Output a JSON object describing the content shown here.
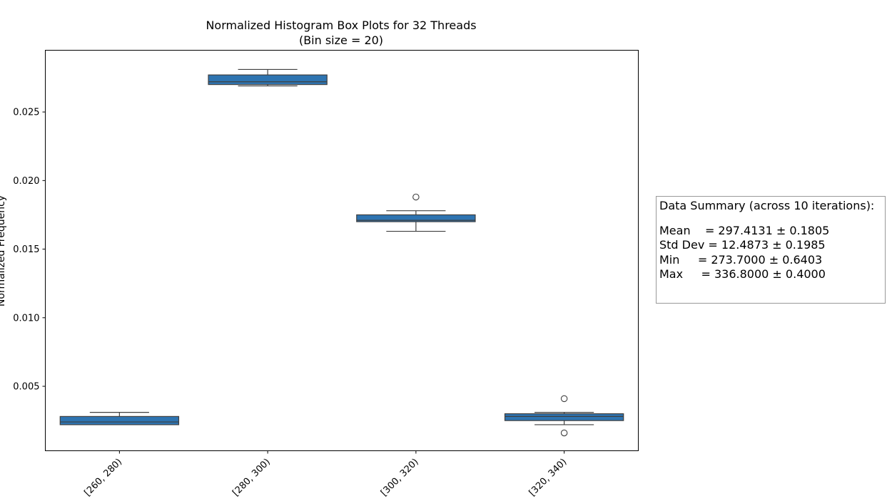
{
  "chart_data": {
    "type": "box",
    "title_line1": "Normalized Histogram Box Plots for 32 Threads",
    "title_line2": "(Bin size = 20)",
    "ylabel": "Normalized Frequency",
    "xlabel": "",
    "categories": [
      "[260, 280)",
      "[280, 300)",
      "[300, 320)",
      "[320, 340)"
    ],
    "ylim": [
      0.0003,
      0.0295
    ],
    "yticks": [
      0.005,
      0.01,
      0.015,
      0.02,
      0.025
    ],
    "ytick_labels": [
      "0.005",
      "0.010",
      "0.015",
      "0.020",
      "0.025"
    ],
    "box_color": "#2e74b1",
    "boxes": [
      {
        "category": "[260, 280)",
        "whisker_low": 0.0022,
        "q1": 0.0022,
        "median": 0.0024,
        "q3": 0.0028,
        "whisker_high": 0.0031,
        "outliers": []
      },
      {
        "category": "[280, 300)",
        "whisker_low": 0.0269,
        "q1": 0.027,
        "median": 0.0272,
        "q3": 0.0277,
        "whisker_high": 0.0281,
        "outliers": []
      },
      {
        "category": "[300, 320)",
        "whisker_low": 0.0163,
        "q1": 0.017,
        "median": 0.0171,
        "q3": 0.0175,
        "whisker_high": 0.0178,
        "outliers": [
          0.0188
        ]
      },
      {
        "category": "[320, 340)",
        "whisker_low": 0.0022,
        "q1": 0.0025,
        "median": 0.0028,
        "q3": 0.003,
        "whisker_high": 0.0031,
        "outliers": [
          0.0041,
          0.0016
        ]
      }
    ]
  },
  "summary": {
    "title": "Data Summary (across 10 iterations):",
    "lines": [
      "Mean    = 297.4131 ± 0.1805",
      "Std Dev = 12.4873 ± 0.1985",
      "Min     = 273.7000 ± 0.6403",
      "Max     = 336.8000 ± 0.4000"
    ]
  }
}
